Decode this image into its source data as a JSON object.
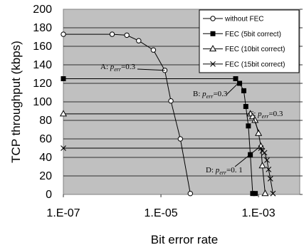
{
  "chart_data": {
    "type": "line",
    "xlabel": "Bit error rate",
    "ylabel": "TCP throughput (kbps)",
    "xscale": "log",
    "xlim": [
      1e-07,
      0.007
    ],
    "ylim": [
      0,
      200
    ],
    "x_ticks": [
      1e-07,
      1e-05,
      0.001
    ],
    "x_tick_labels": [
      "1.E-07",
      "1.E-05",
      "1.E-03"
    ],
    "y_ticks": [
      0,
      20,
      40,
      60,
      80,
      100,
      120,
      140,
      160,
      180,
      200
    ],
    "grid": "horizontal",
    "background": "#c0c0c0",
    "legend_position": "top-right",
    "series": [
      {
        "name": "without FEC",
        "marker": "open-circle",
        "x": [
          1e-07,
          1e-06,
          2e-06,
          3.5e-06,
          7e-06,
          1.2e-05,
          1.6e-05,
          2.5e-05,
          4e-05
        ],
        "y": [
          173,
          173,
          172,
          166,
          156,
          134,
          101,
          60,
          1
        ]
      },
      {
        "name": "FEC (5bit correct)",
        "marker": "filled-square",
        "x": [
          1e-07,
          0.00034,
          0.00041,
          0.0005,
          0.00055,
          0.00062,
          0.00068,
          0.00076,
          0.00086
        ],
        "y": [
          125,
          125,
          120,
          112,
          95,
          74,
          43,
          1,
          1
        ]
      },
      {
        "name": "FEC (10bit correct)",
        "marker": "open-triangle",
        "x": [
          1e-07,
          0.00068,
          0.00076,
          0.00085,
          0.001,
          0.00112,
          0.0012,
          0.00137
        ],
        "y": [
          87,
          87,
          84,
          80,
          66,
          52,
          31,
          1
        ]
      },
      {
        "name": "FEC (15bit correct)",
        "marker": "x",
        "x": [
          1e-07,
          0.00112,
          0.0012,
          0.00133,
          0.00149,
          0.00161,
          0.00175,
          0.00198
        ],
        "y": [
          50,
          50,
          47,
          45,
          37,
          27,
          17,
          1
        ]
      }
    ],
    "annotations": [
      {
        "letter": "A",
        "value": "0.3",
        "target": [
          1.2e-05,
          134
        ]
      },
      {
        "letter": "B",
        "value": "0.3",
        "target": [
          0.0004,
          121
        ]
      },
      {
        "letter": "C",
        "value": "0.3",
        "target": [
          0.001,
          68
        ]
      },
      {
        "letter": "D",
        "value": "0. 1",
        "target": [
          0.00098,
          50
        ]
      }
    ]
  }
}
